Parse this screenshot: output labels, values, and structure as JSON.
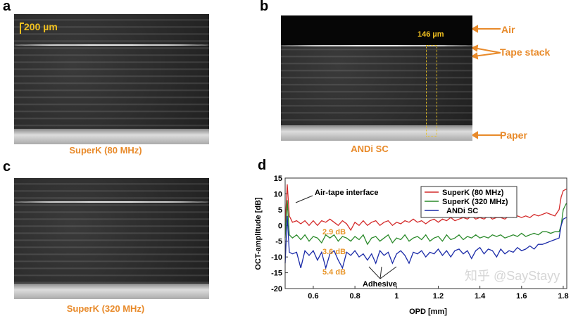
{
  "panels": {
    "a": {
      "letter": "a",
      "caption": "SuperK (80 MHz)",
      "scalebar": "200 µm"
    },
    "b": {
      "letter": "b",
      "caption": "ANDi SC",
      "width_label": "146 µm",
      "annotations": [
        "Air",
        "Tape stack",
        "Paper"
      ]
    },
    "c": {
      "letter": "c",
      "caption": "SuperK (320 MHz)"
    },
    "d": {
      "letter": "d"
    }
  },
  "colors": {
    "orange": "#e88a2a",
    "red": "#d42a2a",
    "green": "#2a8a2a",
    "blue": "#1a2aa8"
  },
  "watermark": "知乎 @SayStayy",
  "chart_data": {
    "type": "line",
    "xlabel": "OPD [mm]",
    "ylabel": "OCT-amplitude [dB]",
    "xlim": [
      0.465,
      1.817
    ],
    "ylim": [
      -20,
      15
    ],
    "xticks": [
      0.6,
      0.8,
      1,
      1.2,
      1.4,
      1.6,
      1.8
    ],
    "yticks": [
      15,
      10,
      5,
      0,
      -5,
      -10,
      -15,
      -20
    ],
    "grid": false,
    "legend": "top-right",
    "x": [
      0.465,
      0.475,
      0.485,
      0.5,
      0.52,
      0.54,
      0.56,
      0.58,
      0.6,
      0.62,
      0.64,
      0.66,
      0.68,
      0.7,
      0.72,
      0.74,
      0.76,
      0.78,
      0.8,
      0.82,
      0.84,
      0.86,
      0.88,
      0.9,
      0.92,
      0.94,
      0.96,
      0.98,
      1.0,
      1.02,
      1.04,
      1.06,
      1.08,
      1.1,
      1.12,
      1.14,
      1.16,
      1.18,
      1.2,
      1.22,
      1.24,
      1.26,
      1.28,
      1.3,
      1.32,
      1.34,
      1.36,
      1.38,
      1.4,
      1.42,
      1.44,
      1.46,
      1.48,
      1.5,
      1.52,
      1.54,
      1.56,
      1.58,
      1.6,
      1.62,
      1.64,
      1.66,
      1.68,
      1.7,
      1.72,
      1.74,
      1.76,
      1.78,
      1.79,
      1.8,
      1.815
    ],
    "series": [
      {
        "name": "SuperK (80 MHz)",
        "color": "#d42a2a",
        "values": [
          0,
          13,
          3,
          1,
          1.5,
          0.5,
          1.5,
          0,
          1.5,
          0,
          1.5,
          1,
          2,
          1,
          0,
          1.5,
          0.5,
          -1.5,
          1,
          0,
          1.5,
          0,
          1,
          1.5,
          0,
          1,
          1.5,
          0,
          1,
          0.5,
          1.5,
          1,
          2,
          1,
          1.5,
          0.5,
          1.5,
          2,
          1,
          2,
          1.5,
          2.5,
          1.5,
          2,
          2.5,
          2,
          3,
          2,
          2.5,
          2,
          3,
          2,
          2.5,
          2.5,
          2,
          3,
          2.5,
          3,
          2.5,
          3,
          2.5,
          3.5,
          3,
          3.5,
          4,
          3.5,
          3,
          5,
          9,
          11,
          11.5
        ]
      },
      {
        "name": "SuperK (320 MHz)",
        "color": "#2a8a2a",
        "values": [
          -4,
          8,
          -3,
          -4,
          -3,
          -4.5,
          -3,
          -5,
          -3.5,
          -4,
          -5.5,
          -3,
          -4,
          -3,
          -5,
          -3.5,
          -4,
          -5,
          -3.5,
          -4.5,
          -3,
          -6,
          -4,
          -3.5,
          -5,
          -4,
          -3,
          -5.5,
          -4,
          -4.5,
          -3,
          -5,
          -4,
          -3.5,
          -4.5,
          -3,
          -5,
          -4,
          -3.5,
          -5,
          -3,
          -4.5,
          -4,
          -3,
          -4.5,
          -3.5,
          -4,
          -3,
          -4,
          -3.5,
          -4,
          -3,
          -3.5,
          -3,
          -4,
          -3.5,
          -3,
          -3.5,
          -2.5,
          -3.5,
          -3,
          -2.5,
          -3,
          -2,
          -2,
          -2.5,
          -2,
          -2,
          0,
          5,
          7
        ]
      },
      {
        "name": "ANDi SC",
        "color": "#1a2aa8",
        "values": [
          -12,
          3,
          -8.5,
          -9,
          -8.5,
          -13.5,
          -8,
          -9.5,
          -8,
          -11,
          -8.5,
          -13.5,
          -9,
          -8,
          -11,
          -13.5,
          -8.5,
          -9.5,
          -8,
          -10,
          -9,
          -11,
          -9,
          -12,
          -8,
          -9.5,
          -8.5,
          -12,
          -9,
          -8,
          -9.5,
          -12,
          -8.5,
          -9,
          -8,
          -10,
          -8.5,
          -9,
          -7.5,
          -9.5,
          -8,
          -10,
          -8,
          -7.5,
          -9,
          -8,
          -10.5,
          -8,
          -7,
          -9,
          -7.5,
          -8,
          -10,
          -7.5,
          -9,
          -8,
          -8.5,
          -7,
          -8,
          -7.5,
          -6.5,
          -7.5,
          -6,
          -6,
          -5.5,
          -5,
          -4.5,
          -4,
          0,
          2,
          2.5
        ]
      }
    ],
    "annotations": [
      "Air-tape interface",
      "2.9 dB",
      "3.6 dB",
      "5.4 dB",
      "Adhesive"
    ]
  }
}
